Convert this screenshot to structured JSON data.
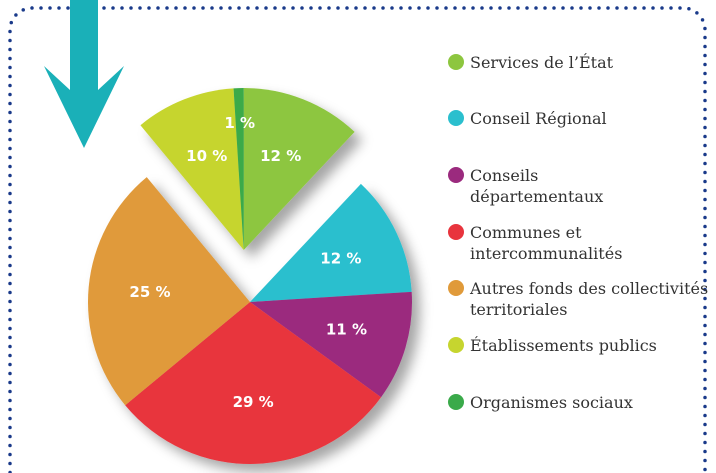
{
  "chart_data": {
    "type": "pie",
    "categories": [
      "Services de l’État",
      "Conseil Régional",
      "Conseils départementaux",
      "Communes et intercommunalités",
      "Autres fonds des collectivités territoriales",
      "Établissements publics",
      "Organismes sociaux"
    ],
    "values": [
      12,
      12,
      11,
      29,
      25,
      10,
      1
    ],
    "value_labels": [
      "12 %",
      "12 %",
      "11 %",
      "29 %",
      "25 %",
      "10 %",
      "1 %"
    ],
    "colors": [
      "#8dc63f",
      "#2bbfce",
      "#9b2a7e",
      "#e8343d",
      "#e09a3a",
      "#c6d52f",
      "#3aaa4a"
    ],
    "explode": [
      true,
      false,
      false,
      false,
      false,
      true,
      true
    ],
    "legend": "right"
  }
}
